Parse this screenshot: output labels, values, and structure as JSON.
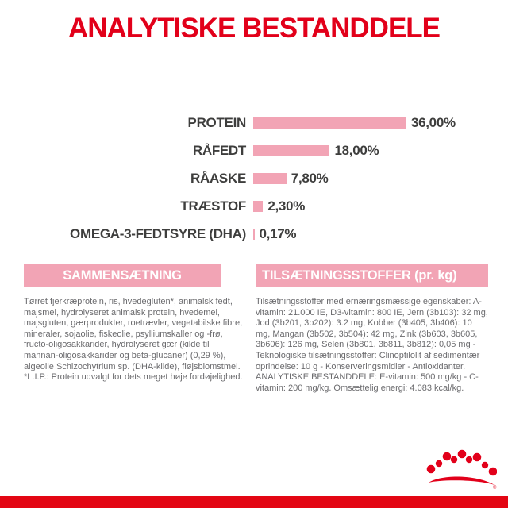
{
  "title": "ANALYTISKE BESTANDDELE",
  "chart_data": {
    "type": "bar",
    "orientation": "horizontal",
    "categories": [
      "PROTEIN",
      "RÅFEDT",
      "RÅASKE",
      "TRÆSTOF",
      "OMEGA-3-FEDTSYRE (DHA)"
    ],
    "values": [
      36.0,
      18.0,
      7.8,
      2.3,
      0.17
    ],
    "value_labels": [
      "36,00%",
      "18,00%",
      "7,80%",
      "2,30%",
      "0,17%"
    ],
    "title": "ANALYTISKE BESTANDDELE",
    "xlabel": "",
    "ylabel": "",
    "xlim": [
      0,
      36
    ],
    "grid": false,
    "legend": false,
    "bar_color": "#f2a4b5"
  },
  "sections": {
    "composition": {
      "header": "SAMMENSÆTNING",
      "body": "Tørret fjerkræprotein, ris, hvedegluten*, animalsk fedt, majsmel, hydrolyseret animalsk protein, hvedemel, majsgluten, gærprodukter, roetrævler, vegetabilske fibre, mineraler, sojaolie, fiskeolie, psylliumskaller og -frø, fructo-oligosakkarider, hydrolyseret gær (kilde til mannan-oligosakkarider og beta-glucaner) (0,29 %), algeolie Schizochytrium sp. (DHA-kilde), fløjsblomstmel.",
      "note": "*L.I.P.: Protein udvalgt for dets meget høje fordøjelighed."
    },
    "additives": {
      "header": "TILSÆTNINGSSTOFFER (pr. kg)",
      "body": "Tilsætningsstoffer med ernæringsmæssige egenskaber: A-vitamin: 21.000 IE, D3-vitamin: 800 IE, Jern (3b103): 32 mg, Jod (3b201, 3b202): 3.2 mg, Kobber (3b405, 3b406): 10 mg, Mangan (3b502, 3b504): 42 mg, Zink (3b603, 3b605, 3b606): 126 mg, Selen (3b801, 3b811, 3b812): 0,05 mg - Teknologiske tilsætningsstoffer: Clinoptilolit af sedimentær oprindelse: 10 g - Konserveringsmidler - Antioxidanter. ANALYTISKE BESTANDDELE: E-vitamin: 500 mg/kg - C-vitamin: 200 mg/kg. Omsættelig energi: 4.083 kcal/kg."
    }
  },
  "branding": {
    "logo": "royal-canin-crown-logo",
    "registered_mark": "®"
  },
  "colors": {
    "accent_red": "#e2001a",
    "brand_red": "#e30613",
    "pink": "#f2a4b5",
    "text_dark": "#3e3e3d",
    "text_gray": "#6b6b6e"
  }
}
